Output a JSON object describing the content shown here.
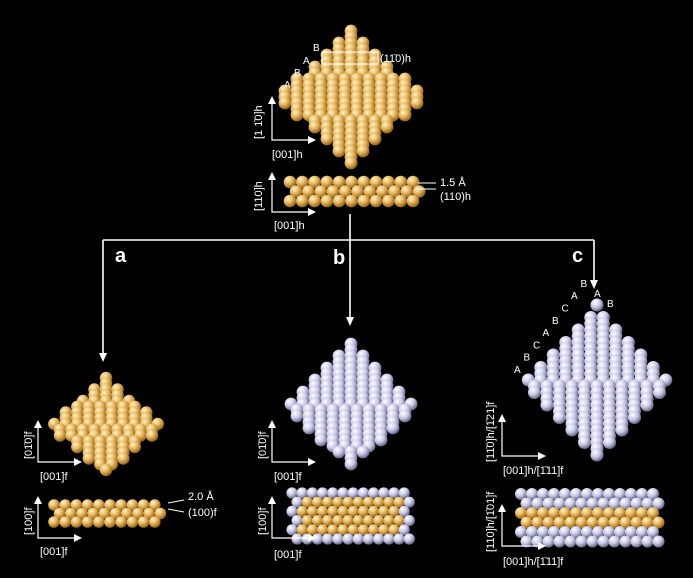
{
  "colors": {
    "background": "#000000",
    "gold_atom": "#e8b860",
    "silver_atom": "#c8c8e8",
    "lines": "#ffffff"
  },
  "top": {
    "plan_axis_vertical": "[1 1̄0]h",
    "plan_axis_horizontal": "[001]h",
    "stacking_letters": [
      "A",
      "B",
      "A",
      "B"
    ],
    "facet_label": "(11̄0)h",
    "side_axis_vertical": "[110]h",
    "side_axis_horizontal": "[001]h",
    "spacing_label": "1.5 Å",
    "plane_label": "(110)h"
  },
  "panel_a": {
    "letter": "a",
    "plan_axis_vertical": "[01̄0]f",
    "plan_axis_horizontal": "[001]f",
    "side_axis_vertical": "[100]f",
    "side_axis_horizontal": "[001]f",
    "spacing_label": "2.0 Å",
    "plane_label": "(100)f"
  },
  "panel_b": {
    "letter": "b",
    "plan_axis_vertical": "[01̄0]f",
    "plan_axis_horizontal": "[001]f",
    "side_axis_vertical": "[100]f",
    "side_axis_horizontal": "[001]f"
  },
  "panel_c": {
    "letter": "c",
    "stacking_letters_left": [
      "A",
      "B",
      "C",
      "A",
      "B",
      "C",
      "A",
      "B"
    ],
    "stacking_letters_top": [
      "A",
      "B"
    ],
    "plan_axis_vertical": "[11̄0]h/[1̄21]f",
    "plan_axis_horizontal": "[001]h/[1̄11]f",
    "side_axis_vertical": "[110]h/[1̄01]f",
    "side_axis_horizontal": "[001]h/[1̄11]f"
  }
}
